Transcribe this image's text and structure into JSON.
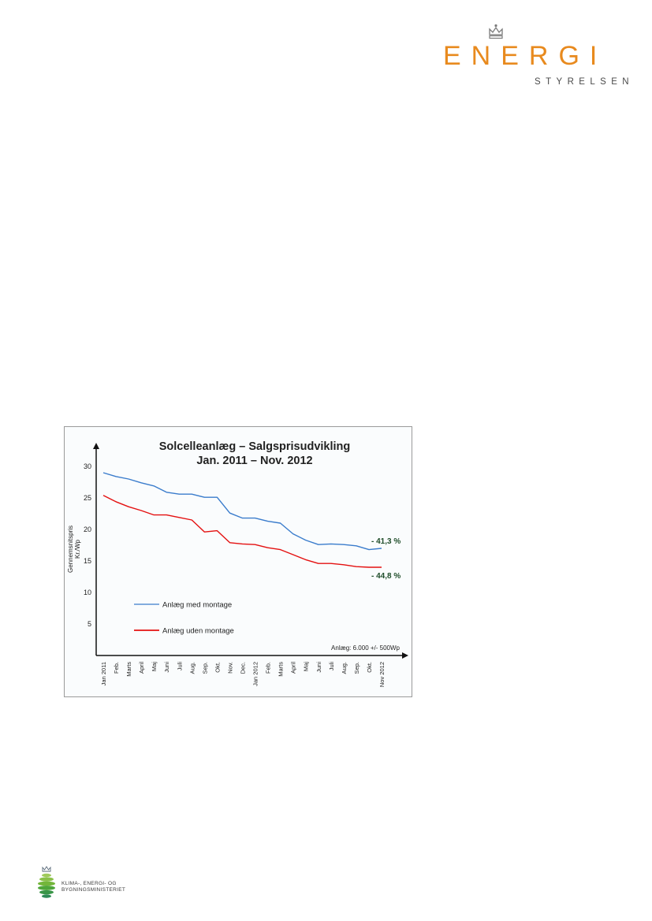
{
  "logo_top": {
    "name": "ENERGI",
    "sub": "STYRELSEN",
    "brand_color": "#e88a1e",
    "icon": "crown-icon"
  },
  "logo_bottom": {
    "line1": "KLIMA-, ENERGI- OG",
    "line2": "BYGNINGSMINISTERIET",
    "icon": "globe-icon"
  },
  "chart_data": {
    "type": "line",
    "title": "Solcelleanlæg – Salgsprisudvikling",
    "subtitle": "Jan. 2011 – Nov. 2012",
    "ylabel": "Gennemsnitspris Kr./Wp",
    "xlabel": "",
    "ylim": [
      0,
      32
    ],
    "yticks": [
      5,
      10,
      15,
      20,
      25,
      30
    ],
    "categories": [
      "Jan 2011",
      "Feb.",
      "Marts",
      "April",
      "Maj",
      "Juni",
      "Juli",
      "Aug.",
      "Sep.",
      "Okt.",
      "Nov.",
      "Dec.",
      "Jan 2012",
      "Feb.",
      "Marts",
      "April",
      "Maj",
      "Juni",
      "Juli",
      "Aug.",
      "Sep.",
      "Okt.",
      "Nov 2012"
    ],
    "series": [
      {
        "name": "Anlæg med montage",
        "color": "#3a7ccc",
        "values": [
          29.0,
          28.4,
          28.0,
          27.4,
          26.9,
          25.9,
          25.6,
          25.6,
          25.1,
          25.1,
          22.6,
          21.8,
          21.8,
          21.3,
          21.0,
          19.3,
          18.3,
          17.6,
          17.7,
          17.6,
          17.4,
          16.8,
          17.0
        ]
      },
      {
        "name": "Anlæg uden montage",
        "color": "#e41010",
        "values": [
          25.4,
          24.4,
          23.6,
          23.0,
          22.3,
          22.3,
          21.9,
          21.5,
          19.6,
          19.8,
          17.9,
          17.7,
          17.6,
          17.1,
          16.8,
          16.0,
          15.2,
          14.6,
          14.6,
          14.4,
          14.1,
          14.0,
          14.0
        ]
      }
    ],
    "annotations": [
      "- 41,3 %",
      "- 44,8 %"
    ],
    "annotation_color": "#1f4d2a",
    "note": "Anlæg: 6.000 +/- 500Wp",
    "legend_position": "lower-left",
    "grid": false
  }
}
